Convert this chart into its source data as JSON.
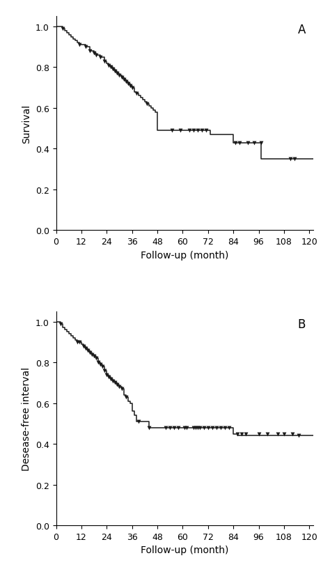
{
  "plot_A": {
    "label": "A",
    "ylabel": "Survival",
    "xlabel": "Follow-up (month)",
    "times": [
      0,
      3,
      4,
      5,
      6,
      7,
      8,
      9,
      10,
      11,
      12,
      14,
      16,
      18,
      19,
      21,
      23,
      24,
      25,
      26,
      27,
      28,
      29,
      30,
      31,
      32,
      33,
      34,
      35,
      36,
      37,
      38,
      39,
      40,
      41,
      42,
      43,
      44,
      45,
      46,
      47,
      48,
      73,
      84,
      97,
      108
    ],
    "surv": [
      1.0,
      0.99,
      0.98,
      0.97,
      0.96,
      0.95,
      0.94,
      0.93,
      0.92,
      0.91,
      0.91,
      0.9,
      0.88,
      0.87,
      0.86,
      0.85,
      0.83,
      0.82,
      0.81,
      0.8,
      0.79,
      0.78,
      0.77,
      0.76,
      0.75,
      0.74,
      0.73,
      0.72,
      0.71,
      0.7,
      0.68,
      0.67,
      0.66,
      0.65,
      0.64,
      0.63,
      0.62,
      0.61,
      0.6,
      0.59,
      0.58,
      0.49,
      0.47,
      0.43,
      0.35,
      0.35
    ],
    "censor_x": [
      3,
      11,
      14,
      16,
      18,
      19,
      21,
      23,
      25,
      26,
      27,
      28,
      29,
      30,
      31,
      32,
      33,
      34,
      35,
      36,
      38,
      43,
      55,
      59,
      63,
      65,
      67,
      69,
      71,
      85,
      87,
      91,
      94,
      97,
      111,
      113
    ],
    "censor_y": [
      0.99,
      0.91,
      0.9,
      0.88,
      0.87,
      0.86,
      0.85,
      0.83,
      0.81,
      0.8,
      0.79,
      0.78,
      0.77,
      0.76,
      0.75,
      0.74,
      0.73,
      0.72,
      0.71,
      0.7,
      0.67,
      0.62,
      0.49,
      0.49,
      0.49,
      0.49,
      0.49,
      0.49,
      0.49,
      0.43,
      0.43,
      0.43,
      0.43,
      0.43,
      0.35,
      0.35
    ],
    "xlim": [
      0,
      122
    ],
    "ylim": [
      0.0,
      1.05
    ],
    "xticks": [
      0,
      12,
      24,
      36,
      48,
      60,
      72,
      84,
      96,
      108,
      120
    ],
    "yticks": [
      0.0,
      0.2,
      0.4,
      0.6,
      0.8,
      1.0
    ]
  },
  "plot_B": {
    "label": "B",
    "ylabel": "Desease-free interval",
    "xlabel": "Follow-up (month)",
    "times": [
      0,
      2,
      3,
      4,
      5,
      6,
      7,
      8,
      9,
      10,
      11,
      12,
      13,
      14,
      15,
      16,
      17,
      18,
      19,
      20,
      21,
      22,
      23,
      24,
      25,
      26,
      27,
      28,
      29,
      30,
      31,
      32,
      33,
      34,
      35,
      36,
      37,
      38,
      39,
      40,
      41,
      42,
      44,
      48,
      60,
      61,
      62,
      65,
      66,
      67,
      68,
      70,
      84,
      86
    ],
    "surv": [
      1.0,
      0.99,
      0.97,
      0.96,
      0.95,
      0.94,
      0.93,
      0.92,
      0.91,
      0.9,
      0.9,
      0.89,
      0.88,
      0.87,
      0.86,
      0.85,
      0.84,
      0.83,
      0.82,
      0.8,
      0.79,
      0.78,
      0.76,
      0.74,
      0.73,
      0.72,
      0.71,
      0.7,
      0.69,
      0.68,
      0.67,
      0.64,
      0.63,
      0.61,
      0.6,
      0.56,
      0.54,
      0.51,
      0.51,
      0.51,
      0.51,
      0.51,
      0.48,
      0.48,
      0.48,
      0.48,
      0.48,
      0.48,
      0.48,
      0.48,
      0.48,
      0.48,
      0.45,
      0.44
    ],
    "censor_x": [
      2,
      10,
      11,
      13,
      14,
      15,
      16,
      17,
      18,
      19,
      20,
      21,
      22,
      23,
      24,
      25,
      26,
      27,
      28,
      29,
      30,
      31,
      33,
      39,
      44,
      52,
      54,
      56,
      58,
      61,
      62,
      65,
      66,
      67,
      68,
      70,
      72,
      74,
      76,
      78,
      80,
      82,
      86,
      88,
      90,
      96,
      100,
      105,
      108,
      112,
      115
    ],
    "censor_y": [
      0.99,
      0.9,
      0.9,
      0.88,
      0.87,
      0.86,
      0.85,
      0.84,
      0.83,
      0.82,
      0.8,
      0.79,
      0.78,
      0.76,
      0.74,
      0.73,
      0.72,
      0.71,
      0.7,
      0.69,
      0.68,
      0.67,
      0.63,
      0.51,
      0.48,
      0.48,
      0.48,
      0.48,
      0.48,
      0.48,
      0.48,
      0.48,
      0.48,
      0.48,
      0.48,
      0.48,
      0.48,
      0.48,
      0.48,
      0.48,
      0.48,
      0.48,
      0.45,
      0.45,
      0.45,
      0.45,
      0.45,
      0.45,
      0.45,
      0.45,
      0.44
    ],
    "xlim": [
      0,
      122
    ],
    "ylim": [
      0.0,
      1.05
    ],
    "xticks": [
      0,
      12,
      24,
      36,
      48,
      60,
      72,
      84,
      96,
      108,
      120
    ],
    "yticks": [
      0.0,
      0.2,
      0.4,
      0.6,
      0.8,
      1.0
    ]
  },
  "line_color": "#1a1a1a",
  "line_width": 1.1,
  "marker_size": 18,
  "bg_color": "#ffffff",
  "label_fontsize": 10,
  "tick_fontsize": 9,
  "panel_label_fontsize": 12
}
